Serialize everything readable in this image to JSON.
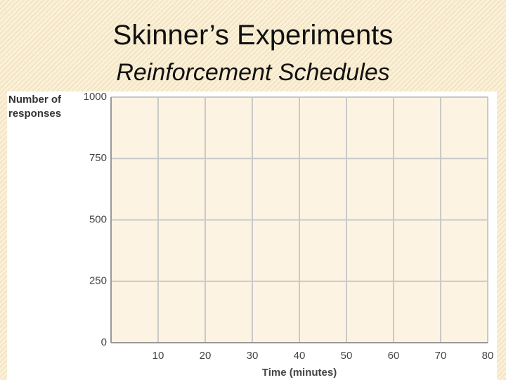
{
  "chart_data": {
    "type": "line",
    "title": "Skinner’s Experiments",
    "subtitle": "Reinforcement Schedules",
    "y_label": "Number of responses",
    "x_label": "Time (minutes)",
    "xlim": [
      0,
      80
    ],
    "xticks": [
      10,
      20,
      30,
      40,
      50,
      60,
      70,
      80
    ],
    "ylim": [
      0,
      1000
    ],
    "yticks": [
      0,
      250,
      500,
      750,
      1000
    ],
    "grid": true
  }
}
